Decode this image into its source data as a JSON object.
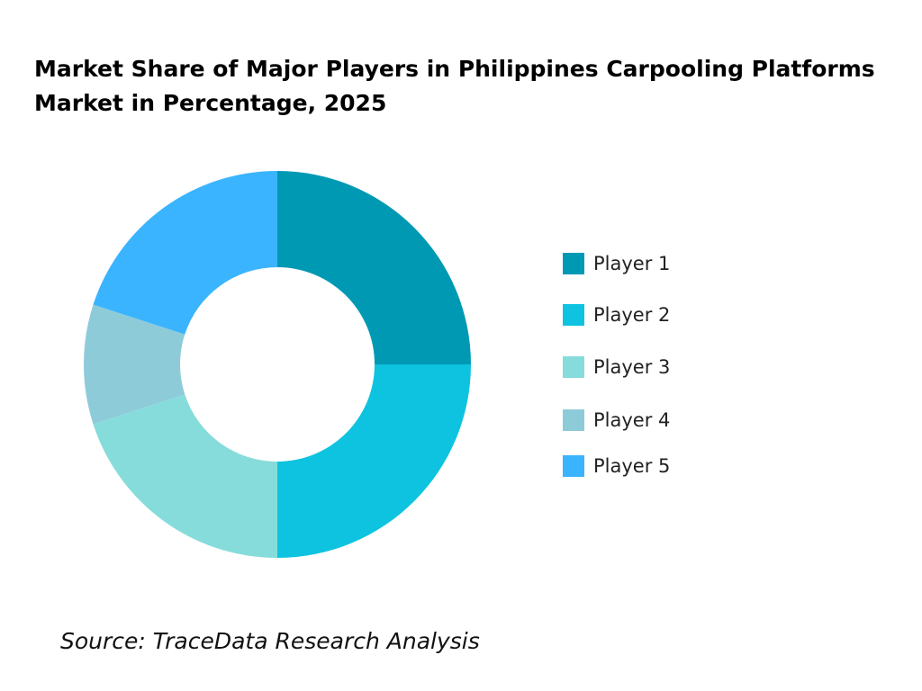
{
  "chart_data": {
    "type": "donut",
    "title": "Market Share of Major Players in Philippines Carpooling Platforms Market in Percentage, 2025",
    "categories": [
      "Player 1",
      "Player 2",
      "Player 3",
      "Player 4",
      "Player 5"
    ],
    "values": [
      25,
      25,
      20,
      10,
      20
    ],
    "colors": [
      "#0099b4",
      "#0dc3e0",
      "#86dcdb",
      "#8ecbd8",
      "#3ab4fe"
    ],
    "legend": "right",
    "source": "Source: TraceData Research Analysis"
  }
}
